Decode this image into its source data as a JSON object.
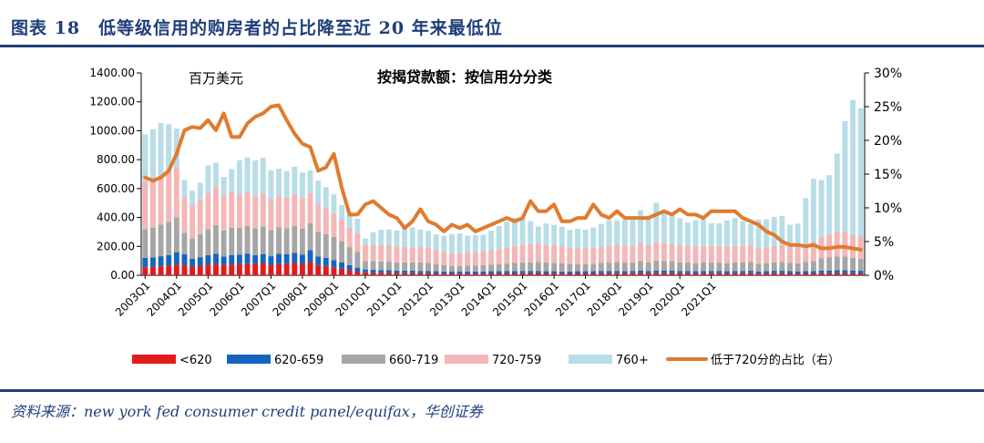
{
  "figure": {
    "title": "图表 18　低等级信用的购房者的占比降至近 20 年来最低位",
    "source": "资料来源：new york fed consumer credit panel/equifax，华创证券"
  },
  "chart_data": {
    "type": "bar",
    "subtype": "stacked-bar-with-line-on-secondary-axis",
    "title": "按揭贷款额：按信用分分类",
    "unit_label": "百万美元",
    "y_left": {
      "ylim": [
        0,
        1400
      ],
      "ticks": [
        "0.00",
        "200.00",
        "400.00",
        "600.00",
        "800.00",
        "1000.00",
        "1200.00",
        "1400.00"
      ]
    },
    "y_right": {
      "ylim": [
        0,
        30
      ],
      "ticks": [
        "0%",
        "5%",
        "10%",
        "15%",
        "20%",
        "25%",
        "30%"
      ]
    },
    "x_tick_labels": [
      "2003Q1",
      "2004Q1",
      "2005Q1",
      "2006Q1",
      "2007Q1",
      "2008Q1",
      "2009Q1",
      "2010Q1",
      "2011Q1",
      "2012Q1",
      "2013Q1",
      "2014Q1",
      "2015Q1",
      "2016Q1",
      "2017Q1",
      "2018Q1",
      "2019Q1",
      "2020Q1",
      "2021Q1"
    ],
    "legend_position": "bottom",
    "series": [
      {
        "name": "<620",
        "color": "#e31a1c",
        "values": [
          55,
          58,
          62,
          65,
          75,
          70,
          60,
          65,
          75,
          78,
          70,
          75,
          78,
          80,
          80,
          82,
          72,
          78,
          80,
          85,
          78,
          95,
          70,
          65,
          55,
          45,
          35,
          25,
          20,
          18,
          18,
          18,
          16,
          15,
          15,
          14,
          14,
          13,
          12,
          12,
          12,
          12,
          12,
          12,
          13,
          13,
          13,
          13,
          14,
          14,
          14,
          13,
          13,
          12,
          13,
          13,
          13,
          13,
          14,
          14,
          14,
          13,
          14,
          15,
          14,
          15,
          15,
          15,
          14,
          14,
          13,
          14,
          14,
          14,
          13,
          14,
          14,
          14,
          12,
          13,
          14,
          14,
          13,
          12,
          13,
          13,
          14,
          14,
          15,
          15,
          14,
          13
        ]
      },
      {
        "name": "620-659",
        "color": "#1565c0",
        "values": [
          65,
          65,
          70,
          75,
          85,
          75,
          55,
          60,
          65,
          70,
          60,
          65,
          65,
          70,
          60,
          65,
          60,
          70,
          65,
          70,
          65,
          80,
          60,
          55,
          50,
          45,
          35,
          28,
          20,
          20,
          18,
          18,
          17,
          17,
          17,
          16,
          16,
          15,
          14,
          13,
          13,
          14,
          14,
          14,
          15,
          15,
          16,
          16,
          16,
          16,
          16,
          15,
          15,
          14,
          14,
          15,
          15,
          15,
          16,
          16,
          16,
          15,
          16,
          17,
          16,
          17,
          17,
          17,
          16,
          16,
          15,
          16,
          16,
          16,
          15,
          16,
          16,
          17,
          15,
          16,
          17,
          17,
          16,
          15,
          16,
          16,
          18,
          19,
          20,
          20,
          19,
          18
        ]
      },
      {
        "name": "660-719",
        "color": "#a6a6a6",
        "values": [
          200,
          205,
          220,
          230,
          240,
          150,
          140,
          160,
          180,
          200,
          180,
          190,
          185,
          190,
          185,
          190,
          180,
          185,
          180,
          185,
          180,
          185,
          170,
          165,
          160,
          145,
          125,
          110,
          60,
          60,
          60,
          58,
          55,
          57,
          57,
          58,
          56,
          50,
          44,
          40,
          40,
          42,
          42,
          43,
          45,
          48,
          52,
          56,
          58,
          60,
          62,
          60,
          58,
          56,
          52,
          50,
          50,
          52,
          55,
          58,
          62,
          60,
          58,
          65,
          60,
          70,
          66,
          64,
          60,
          60,
          56,
          58,
          58,
          58,
          56,
          58,
          58,
          60,
          52,
          55,
          58,
          60,
          58,
          56,
          64,
          68,
          85,
          90,
          95,
          95,
          88,
          82
        ]
      },
      {
        "name": "720-759",
        "color": "#f4b6b6",
        "values": [
          330,
          335,
          345,
          350,
          350,
          240,
          230,
          240,
          250,
          260,
          240,
          245,
          230,
          235,
          225,
          230,
          215,
          220,
          215,
          220,
          210,
          210,
          190,
          180,
          165,
          150,
          135,
          125,
          110,
          110,
          112,
          115,
          110,
          108,
          108,
          110,
          108,
          100,
          92,
          88,
          88,
          95,
          95,
          98,
          100,
          105,
          112,
          118,
          122,
          125,
          128,
          125,
          122,
          118,
          112,
          108,
          108,
          110,
          112,
          118,
          122,
          118,
          115,
          128,
          118,
          130,
          124,
          122,
          118,
          116,
          112,
          115,
          115,
          115,
          112,
          115,
          115,
          118,
          108,
          112,
          115,
          118,
          115,
          112,
          125,
          135,
          150,
          160,
          170,
          170,
          162,
          155
        ]
      },
      {
        "name": "760+",
        "color": "#b7dde8",
        "values": [
          325,
          347,
          356,
          325,
          265,
          125,
          100,
          115,
          190,
          170,
          130,
          160,
          237,
          240,
          245,
          245,
          199,
          185,
          180,
          190,
          178,
          155,
          165,
          145,
          130,
          100,
          95,
          103,
          45,
          90,
          107,
          108,
          112,
          138,
          133,
          118,
          113,
          105,
          110,
          132,
          137,
          111,
          116,
          113,
          136,
          159,
          178,
          194,
          185,
          160,
          118,
          146,
          142,
          136,
          123,
          135,
          129,
          140,
          158,
          174,
          166,
          178,
          180,
          225,
          190,
          270,
          222,
          202,
          187,
          159,
          184,
          185,
          157,
          157,
          184,
          192,
          172,
          148,
          198,
          191,
          199,
          201,
          148,
          162,
          316,
          435,
          393,
          409,
          542,
          767,
          930,
          887
        ]
      },
      {
        "name": "低于720分的占比（右）",
        "color": "#e07b2e",
        "axis": "right",
        "values": [
          14.5,
          14.0,
          14.5,
          15.5,
          18.0,
          21.5,
          22.0,
          21.8,
          23.0,
          21.5,
          24.0,
          20.5,
          20.5,
          22.5,
          23.5,
          24.0,
          25.0,
          25.2,
          23.0,
          21.0,
          19.5,
          19.0,
          15.5,
          16.0,
          18.0,
          13.0,
          9.0,
          9.0,
          10.5,
          11.0,
          10.0,
          9.0,
          8.5,
          7.0,
          8.0,
          9.8,
          8.0,
          7.5,
          6.5,
          7.5,
          7.0,
          7.5,
          6.5,
          7.0,
          7.5,
          8.0,
          8.5,
          8.0,
          8.5,
          11.0,
          9.5,
          9.5,
          10.5,
          8.0,
          8.0,
          8.5,
          8.5,
          10.5,
          9.0,
          8.5,
          9.5,
          8.5,
          8.5,
          8.5,
          8.5,
          9.0,
          9.5,
          9.0,
          9.8,
          9.0,
          9.0,
          8.5,
          9.5,
          9.5,
          9.5,
          9.5,
          8.5,
          8.0,
          7.5,
          6.5,
          6.0,
          5.0,
          4.5,
          4.5,
          4.3,
          4.5,
          4.0,
          4.0,
          4.2,
          4.2,
          4.0,
          3.8
        ]
      }
    ]
  }
}
